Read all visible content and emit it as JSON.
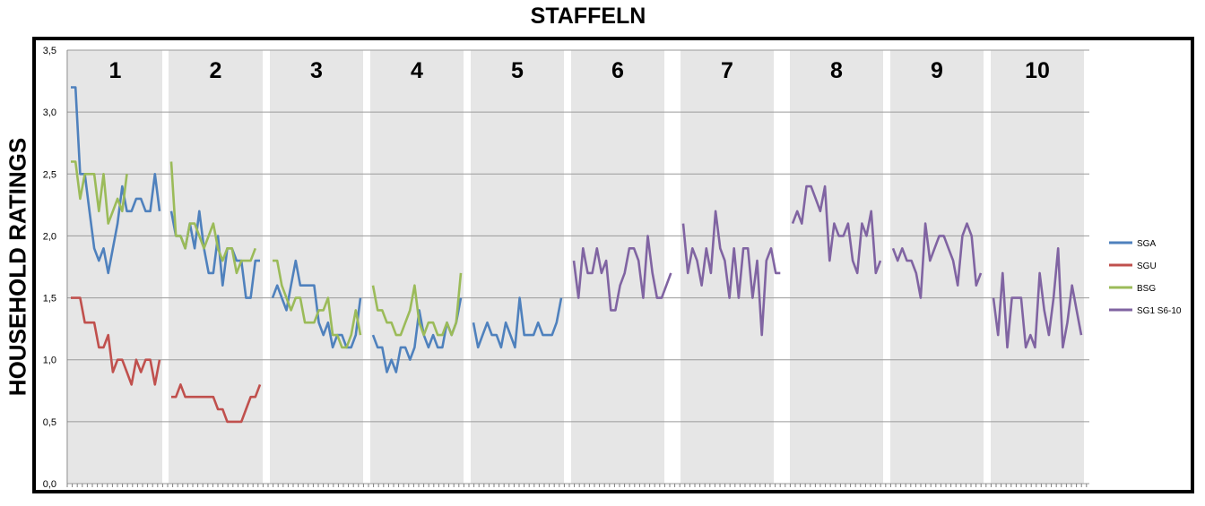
{
  "chart_data": {
    "type": "line",
    "title": "STAFFELN",
    "xlabel": "",
    "ylabel": "HOUSEHOLD RATINGS",
    "ylim": [
      0,
      3.5
    ],
    "yticks": [
      "0,0",
      "0,5",
      "1,0",
      "1,5",
      "2,0",
      "2,5",
      "3,0",
      "3,5"
    ],
    "grid": true,
    "legend_position": "right",
    "season_labels": [
      "1",
      "2",
      "3",
      "4",
      "5",
      "6",
      "7",
      "8",
      "9",
      "10"
    ],
    "series": [
      {
        "name": "SGA",
        "color": "#4f81bd",
        "seasons": [
          [
            3.2,
            3.2,
            2.5,
            2.5,
            2.2,
            1.9,
            1.8,
            1.9,
            1.7,
            1.9,
            2.1,
            2.4,
            2.2,
            2.2,
            2.3,
            2.3,
            2.2,
            2.2,
            2.5,
            2.2
          ],
          [
            2.2,
            2.0,
            2.0,
            1.9,
            2.1,
            1.9,
            2.2,
            1.9,
            1.7,
            1.7,
            2.0,
            1.6,
            1.9,
            1.9,
            1.8,
            1.8,
            1.5,
            1.5,
            1.8,
            1.8
          ],
          [
            1.5,
            1.6,
            1.5,
            1.4,
            1.6,
            1.8,
            1.6,
            1.6,
            1.6,
            1.6,
            1.3,
            1.2,
            1.3,
            1.1,
            1.2,
            1.2,
            1.1,
            1.1,
            1.2,
            1.5
          ],
          [
            1.2,
            1.1,
            1.1,
            0.9,
            1.0,
            0.9,
            1.1,
            1.1,
            1.0,
            1.1,
            1.4,
            1.2,
            1.1,
            1.2,
            1.1,
            1.1,
            1.3,
            1.2,
            1.3,
            1.5
          ],
          [
            1.3,
            1.1,
            1.2,
            1.3,
            1.2,
            1.2,
            1.1,
            1.3,
            1.2,
            1.1,
            1.5,
            1.2,
            1.2,
            1.2,
            1.3,
            1.2,
            1.2,
            1.2,
            1.3,
            1.5
          ]
        ]
      },
      {
        "name": "SGU",
        "color": "#c0504d",
        "seasons": [
          [
            1.5,
            1.5,
            1.5,
            1.3,
            1.3,
            1.3,
            1.1,
            1.1,
            1.2,
            0.9,
            1.0,
            1.0,
            0.9,
            0.8,
            1.0,
            0.9,
            1.0,
            1.0,
            0.8,
            1.0
          ],
          [
            0.7,
            0.7,
            0.8,
            0.7,
            0.7,
            0.7,
            0.7,
            0.7,
            0.7,
            0.7,
            0.6,
            0.6,
            0.5,
            0.5,
            0.5,
            0.5,
            0.6,
            0.7,
            0.7,
            0.8
          ]
        ]
      },
      {
        "name": "BSG",
        "color": "#9bbb59",
        "seasons": [
          [
            2.6,
            2.6,
            2.3,
            2.5,
            2.5,
            2.5,
            2.2,
            2.5,
            2.1,
            2.2,
            2.3,
            2.2,
            2.5
          ],
          [
            2.6,
            2.0,
            2.0,
            1.9,
            2.1,
            2.1,
            2.0,
            1.9,
            2.0,
            2.1,
            1.9,
            1.8,
            1.9,
            1.9,
            1.7,
            1.8,
            1.8,
            1.8,
            1.9
          ],
          [
            1.8,
            1.8,
            1.6,
            1.5,
            1.4,
            1.5,
            1.5,
            1.3,
            1.3,
            1.3,
            1.4,
            1.4,
            1.5,
            1.2,
            1.2,
            1.1,
            1.1,
            1.2,
            1.4,
            1.2
          ],
          [
            1.6,
            1.4,
            1.4,
            1.3,
            1.3,
            1.2,
            1.2,
            1.3,
            1.4,
            1.6,
            1.3,
            1.2,
            1.3,
            1.3,
            1.2,
            1.2,
            1.3,
            1.2,
            1.3,
            1.7
          ]
        ]
      },
      {
        "name": "SG1 S6-10",
        "color": "#8064a2",
        "seasons": [
          [
            1.8,
            1.5,
            1.9,
            1.7,
            1.7,
            1.9,
            1.7,
            1.8,
            1.4,
            1.4,
            1.6,
            1.7,
            1.9,
            1.9,
            1.8,
            1.5,
            2.0,
            1.7,
            1.5,
            1.5,
            1.6,
            1.7
          ],
          [
            2.1,
            1.7,
            1.9,
            1.8,
            1.6,
            1.9,
            1.7,
            2.2,
            1.9,
            1.8,
            1.5,
            1.9,
            1.5,
            1.9,
            1.9,
            1.5,
            1.8,
            1.2,
            1.8,
            1.9,
            1.7,
            1.7
          ],
          [
            2.1,
            2.2,
            2.1,
            2.4,
            2.4,
            2.3,
            2.2,
            2.4,
            1.8,
            2.1,
            2.0,
            2.0,
            2.1,
            1.8,
            1.7,
            2.1,
            2.0,
            2.2,
            1.7,
            1.8
          ],
          [
            1.9,
            1.8,
            1.9,
            1.8,
            1.8,
            1.7,
            1.5,
            2.1,
            1.8,
            1.9,
            2.0,
            2.0,
            1.9,
            1.8,
            1.6,
            2.0,
            2.1,
            2.0,
            1.6,
            1.7
          ],
          [
            1.5,
            1.2,
            1.7,
            1.1,
            1.5,
            1.5,
            1.5,
            1.1,
            1.2,
            1.1,
            1.7,
            1.4,
            1.2,
            1.5,
            1.9,
            1.1,
            1.3,
            1.6,
            1.4,
            1.2
          ]
        ]
      }
    ]
  }
}
